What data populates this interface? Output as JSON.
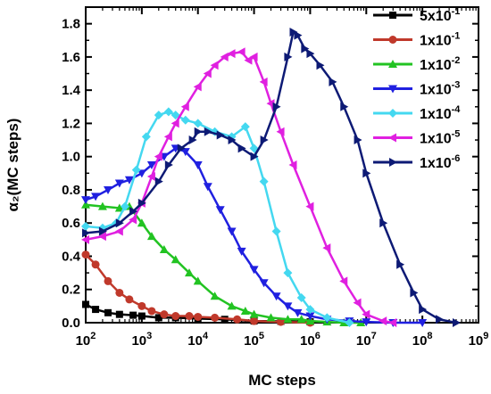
{
  "chart_data": {
    "type": "line",
    "title": "",
    "xlabel": "MC steps",
    "ylabel": "α₂(MC steps)",
    "x_scale": "log",
    "xlim": [
      100,
      1000000000
    ],
    "ylim": [
      0.0,
      1.9
    ],
    "grid": false,
    "legend_position": "top-right",
    "x_tick_labels": [
      {
        "value": 100,
        "base": "10",
        "exp": "2"
      },
      {
        "value": 1000,
        "base": "10",
        "exp": "3"
      },
      {
        "value": 10000,
        "base": "10",
        "exp": "4"
      },
      {
        "value": 100000,
        "base": "10",
        "exp": "5"
      },
      {
        "value": 1000000,
        "base": "10",
        "exp": "6"
      },
      {
        "value": 10000000,
        "base": "10",
        "exp": "7"
      },
      {
        "value": 100000000,
        "base": "10",
        "exp": "8"
      },
      {
        "value": 1000000000,
        "base": "10",
        "exp": "9"
      }
    ],
    "y_ticks": [
      "0.0",
      "0.2",
      "0.4",
      "0.6",
      "0.8",
      "1.0",
      "1.2",
      "1.4",
      "1.6",
      "1.8"
    ],
    "series": [
      {
        "name": "5x10⁻¹",
        "label_base": "5x10",
        "label_exp": "-1",
        "color": "#000000",
        "marker": "square",
        "x": [
          100,
          150,
          250,
          400,
          700,
          1000,
          2000,
          4000,
          10000,
          30000,
          100000,
          300000,
          1000000
        ],
        "y": [
          0.11,
          0.08,
          0.06,
          0.05,
          0.045,
          0.04,
          0.03,
          0.03,
          0.025,
          0.02,
          0.01,
          0.008,
          0.005
        ]
      },
      {
        "name": "1x10⁻¹",
        "label_base": "1x10",
        "label_exp": "-1",
        "color": "#c0392b",
        "marker": "circle",
        "x": [
          100,
          150,
          250,
          400,
          600,
          1000,
          1500,
          2500,
          4000,
          7000,
          10000,
          20000,
          50000,
          100000,
          300000,
          1000000
        ],
        "y": [
          0.41,
          0.35,
          0.25,
          0.18,
          0.14,
          0.1,
          0.07,
          0.05,
          0.04,
          0.04,
          0.035,
          0.03,
          0.02,
          0.01,
          0.005,
          0.0
        ]
      },
      {
        "name": "1x10⁻²",
        "label_base": "1x10",
        "label_exp": "-2",
        "color": "#22c322",
        "marker": "triangle-up",
        "x": [
          100,
          200,
          400,
          600,
          1000,
          1500,
          2500,
          4000,
          7000,
          10000,
          20000,
          40000,
          70000,
          100000,
          200000,
          400000,
          700000,
          1000000,
          2000000,
          4000000,
          8000000
        ],
        "y": [
          0.71,
          0.7,
          0.69,
          0.7,
          0.6,
          0.52,
          0.44,
          0.38,
          0.3,
          0.25,
          0.16,
          0.1,
          0.07,
          0.05,
          0.03,
          0.02,
          0.02,
          0.01,
          0.005,
          0.0,
          0.0
        ]
      },
      {
        "name": "1x10⁻³",
        "label_base": "1x10",
        "label_exp": "-3",
        "color": "#2020e0",
        "marker": "triangle-down",
        "x": [
          100,
          150,
          250,
          400,
          600,
          1000,
          1500,
          2500,
          4000,
          6000,
          10000,
          15000,
          25000,
          40000,
          60000,
          100000,
          150000,
          250000,
          400000,
          600000,
          1000000,
          2000000,
          5000000,
          10000000,
          30000000,
          100000000
        ],
        "y": [
          0.74,
          0.76,
          0.8,
          0.84,
          0.86,
          0.9,
          0.95,
          1.0,
          1.05,
          1.03,
          0.95,
          0.82,
          0.68,
          0.55,
          0.43,
          0.32,
          0.24,
          0.16,
          0.1,
          0.06,
          0.04,
          0.02,
          0.01,
          0.005,
          0.0,
          0.0
        ]
      },
      {
        "name": "1x10⁻⁴",
        "label_base": "1x10",
        "label_exp": "-4",
        "color": "#44d8f0",
        "marker": "diamond",
        "x": [
          100,
          200,
          350,
          500,
          800,
          1200,
          2000,
          3000,
          4000,
          6000,
          10000,
          20000,
          40000,
          70000,
          100000,
          150000,
          250000,
          400000,
          700000,
          1000000,
          2000000,
          5000000
        ],
        "y": [
          0.58,
          0.57,
          0.6,
          0.7,
          0.92,
          1.12,
          1.25,
          1.27,
          1.25,
          1.22,
          1.2,
          1.15,
          1.12,
          1.18,
          1.05,
          0.85,
          0.55,
          0.3,
          0.15,
          0.08,
          0.03,
          0.0
        ]
      },
      {
        "name": "1x10⁻⁵",
        "label_base": "1x10",
        "label_exp": "-5",
        "color": "#e020e0",
        "marker": "triangle-left",
        "x": [
          100,
          200,
          400,
          700,
          1000,
          1500,
          2000,
          3000,
          4000,
          6000,
          10000,
          15000,
          20000,
          30000,
          40000,
          60000,
          80000,
          100000,
          150000,
          200000,
          300000,
          500000,
          1000000,
          2000000,
          4000000,
          7000000,
          10000000,
          20000000,
          30000000
        ],
        "y": [
          0.5,
          0.52,
          0.55,
          0.62,
          0.72,
          0.88,
          1.0,
          1.12,
          1.2,
          1.3,
          1.42,
          1.5,
          1.55,
          1.6,
          1.62,
          1.63,
          1.58,
          1.6,
          1.45,
          1.32,
          1.15,
          0.95,
          0.7,
          0.45,
          0.25,
          0.12,
          0.05,
          0.01,
          0.0
        ]
      },
      {
        "name": "1x10⁻⁶",
        "label_base": "1x10",
        "label_exp": "-6",
        "color": "#0d1a75",
        "marker": "triangle-right",
        "x": [
          100,
          200,
          400,
          700,
          1000,
          2000,
          3000,
          5000,
          8000,
          10000,
          15000,
          25000,
          40000,
          60000,
          100000,
          150000,
          250000,
          400000,
          500000,
          600000,
          800000,
          1000000,
          1500000,
          2500000,
          4000000,
          7000000,
          10000000,
          20000000,
          40000000,
          70000000,
          100000000,
          200000000,
          400000000
        ],
        "y": [
          0.54,
          0.55,
          0.6,
          0.67,
          0.72,
          0.85,
          0.95,
          1.05,
          1.1,
          1.15,
          1.15,
          1.13,
          1.1,
          1.05,
          1.0,
          1.1,
          1.3,
          1.6,
          1.75,
          1.73,
          1.65,
          1.62,
          1.55,
          1.45,
          1.3,
          1.1,
          0.9,
          0.6,
          0.35,
          0.18,
          0.08,
          0.02,
          0.0
        ]
      }
    ]
  }
}
